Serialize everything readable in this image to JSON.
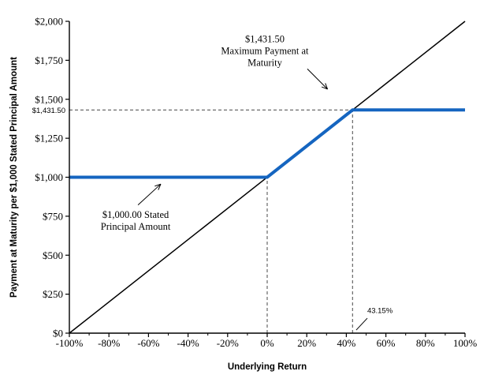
{
  "chart_data": {
    "type": "line",
    "title": "",
    "xlabel": "Underlying Return",
    "ylabel": "Payment at Maturity per $1,000 Stated Principal Amount",
    "xlim": [
      -100,
      100
    ],
    "ylim": [
      0,
      2000
    ],
    "grid": false,
    "legend_position": "none",
    "x_major_ticks": [
      {
        "value": -100,
        "label": "-100%"
      },
      {
        "value": -80,
        "label": "-80%"
      },
      {
        "value": -60,
        "label": "-60%"
      },
      {
        "value": -40,
        "label": "-40%"
      },
      {
        "value": -20,
        "label": "-20%"
      },
      {
        "value": 0,
        "label": "0%"
      },
      {
        "value": 20,
        "label": "20%"
      },
      {
        "value": 40,
        "label": "40%"
      },
      {
        "value": 60,
        "label": "60%"
      },
      {
        "value": 80,
        "label": "80%"
      },
      {
        "value": 100,
        "label": "100%"
      }
    ],
    "x_minor_tick_values": [
      -90,
      -70,
      -50,
      -30,
      -10,
      10,
      30,
      50,
      70,
      90
    ],
    "y_major_ticks": [
      {
        "value": 0,
        "label": "$0"
      },
      {
        "value": 250,
        "label": "$250"
      },
      {
        "value": 500,
        "label": "$500"
      },
      {
        "value": 750,
        "label": "$750"
      },
      {
        "value": 1000,
        "label": "$1,000"
      },
      {
        "value": 1250,
        "label": "$1,250"
      },
      {
        "value": 1500,
        "label": "$1,500"
      },
      {
        "value": 1750,
        "label": "$1,750"
      },
      {
        "value": 2000,
        "label": "$2,000"
      }
    ],
    "extra_y_label": {
      "value": 1431.5,
      "label": "$1,431.50"
    },
    "series": [
      {
        "name": "underlying-return-line",
        "color": "#000000",
        "width": 1.5,
        "points": [
          [
            -100,
            0
          ],
          [
            100,
            2000
          ]
        ]
      },
      {
        "name": "payment-at-maturity-line",
        "color": "#1565C0",
        "width": 4,
        "points": [
          [
            -100,
            1000
          ],
          [
            0,
            1000
          ],
          [
            43.15,
            1431.5
          ],
          [
            100,
            1431.5
          ]
        ]
      }
    ],
    "key_points": {
      "maximum_payment": 1431.5,
      "stated_principal": 1000,
      "cap_underlying_return_pct": 43.15
    },
    "reference_lines": [
      {
        "name": "max-payment-dashed-hline",
        "points": [
          [
            -100,
            1431.5
          ],
          [
            43.15,
            1431.5
          ]
        ]
      },
      {
        "name": "zero-return-dashed-vline",
        "points": [
          [
            0,
            0
          ],
          [
            0,
            1000
          ]
        ]
      },
      {
        "name": "cap-return-dashed-vline",
        "points": [
          [
            43.15,
            0
          ],
          [
            43.15,
            1431.5
          ]
        ]
      }
    ],
    "annotations": [
      {
        "name": "max-payment-annotation",
        "lines": [
          "$1,431.50",
          "Maximum Payment at",
          "Maturity"
        ],
        "font": "serif",
        "size": 12.5,
        "x": -1.2,
        "y": 1810,
        "arrow": {
          "from": [
            20.3,
            1695
          ],
          "to": [
            30.5,
            1565
          ],
          "head": true
        }
      },
      {
        "name": "principal-annotation",
        "lines": [
          "$1,000.00 Stated",
          "Principal Amount"
        ],
        "font": "serif",
        "size": 12.5,
        "x": -66.5,
        "y": 722,
        "arrow": {
          "from": [
            -65.3,
            822
          ],
          "to": [
            -53.8,
            956
          ],
          "head": true
        }
      },
      {
        "name": "cap-return-annotation",
        "lines": [
          "43.15%"
        ],
        "font": "sans",
        "size": 9.5,
        "x": 57,
        "y": 150,
        "arrow": {
          "from": [
            50.6,
            96
          ],
          "to": [
            45.0,
            20
          ],
          "head": false
        }
      }
    ],
    "colors": {
      "payoff_line": "#1565C0",
      "underlying_line": "#000000",
      "dashed_reference": "#595959",
      "axis": "#000000",
      "text": "#000000"
    }
  }
}
